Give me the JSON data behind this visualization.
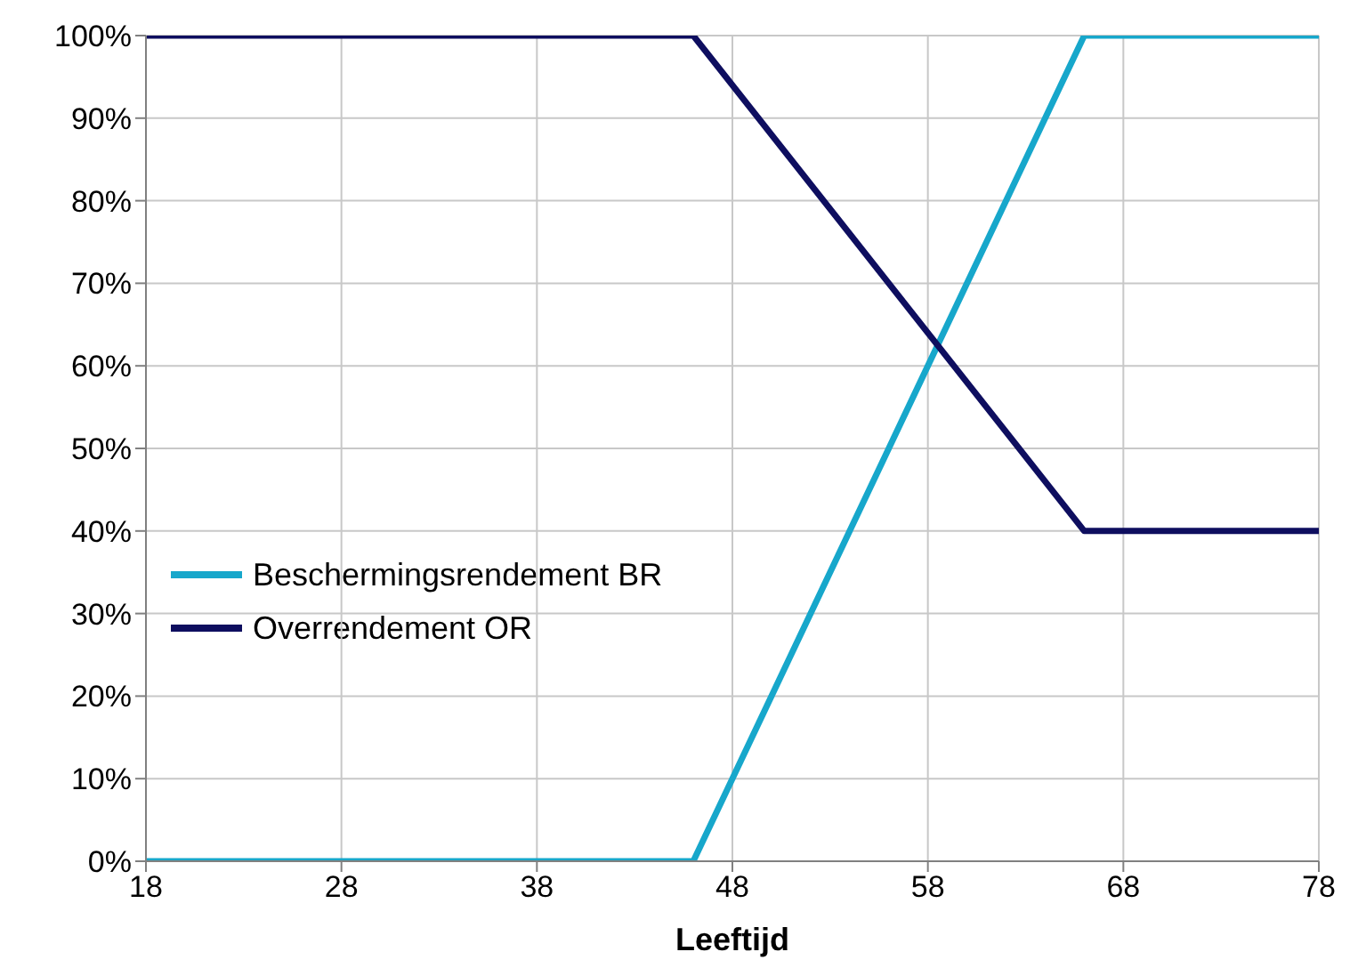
{
  "chart_data": {
    "type": "line",
    "xlabel": "Leeftijd",
    "x": [
      18,
      46,
      66,
      78
    ],
    "series": [
      {
        "name": "Beschermingsrendement BR",
        "color": "#17a7cb",
        "values": [
          0,
          0,
          100,
          100
        ]
      },
      {
        "name": "Overrendement OR",
        "color": "#0e0e5f",
        "values": [
          100,
          100,
          40,
          40
        ]
      }
    ],
    "xlim": [
      18,
      78
    ],
    "xticks": [
      18,
      28,
      38,
      48,
      58,
      68,
      78
    ],
    "ylim": [
      0,
      100
    ],
    "yticks": [
      {
        "value": 0,
        "label": "0%"
      },
      {
        "value": 10,
        "label": "10%"
      },
      {
        "value": 20,
        "label": "20%"
      },
      {
        "value": 30,
        "label": "30%"
      },
      {
        "value": 40,
        "label": "40%"
      },
      {
        "value": 50,
        "label": "50%"
      },
      {
        "value": 60,
        "label": "60%"
      },
      {
        "value": 70,
        "label": "70%"
      },
      {
        "value": 80,
        "label": "80%"
      },
      {
        "value": 90,
        "label": "90%"
      },
      {
        "value": 100,
        "label": "100%"
      }
    ],
    "grid": true,
    "legend": "left"
  }
}
